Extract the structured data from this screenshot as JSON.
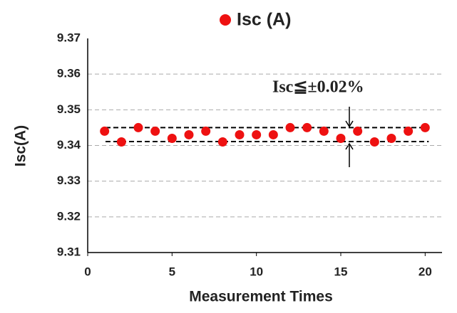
{
  "chart_data": {
    "type": "scatter",
    "title": "Isc (A)",
    "x_label": "Measurement Times",
    "y_label": "Isc(A)",
    "annotation": "Isc≦±0.02%",
    "series": [
      {
        "name": "Isc (A)",
        "color": "#ee1111",
        "x": [
          1,
          2,
          3,
          4,
          5,
          6,
          7,
          8,
          9,
          10,
          11,
          12,
          13,
          14,
          15,
          16,
          17,
          18,
          19,
          20
        ],
        "values": [
          9.344,
          9.341,
          9.345,
          9.344,
          9.342,
          9.343,
          9.344,
          9.341,
          9.343,
          9.343,
          9.343,
          9.345,
          9.345,
          9.344,
          9.342,
          9.344,
          9.341,
          9.342,
          9.344,
          9.345
        ]
      }
    ],
    "reference_lines": [
      9.345,
      9.3411
    ],
    "xlim": [
      0,
      21
    ],
    "xticks": [
      0,
      5,
      10,
      15,
      20
    ],
    "ylim": [
      9.31,
      9.37
    ],
    "yticks": [
      9.31,
      9.32,
      9.33,
      9.34,
      9.35,
      9.36,
      9.37
    ],
    "grid": true
  }
}
